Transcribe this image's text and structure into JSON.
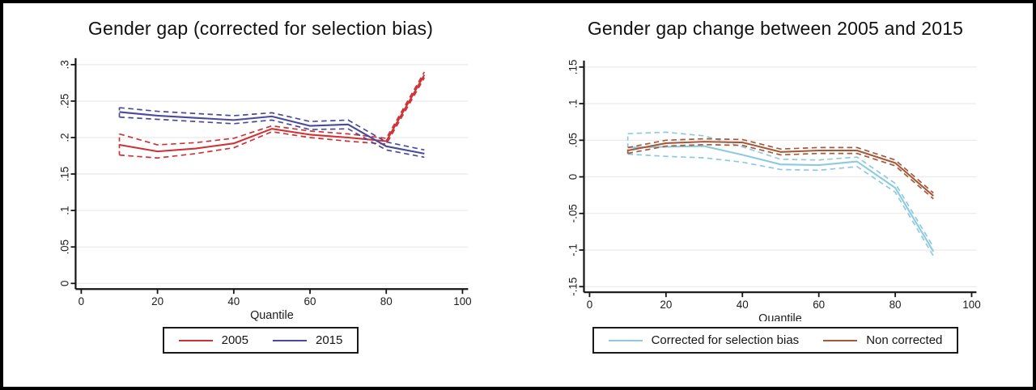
{
  "figure": {
    "background": "#ffffff",
    "border_color": "#000000",
    "gridline_color": "#ebebeb",
    "axis_color": "#141414"
  },
  "chart_data": [
    {
      "type": "line",
      "title": "Gender gap (corrected for selection bias)",
      "xlabel": "Quantile",
      "ylabel": "",
      "xlim": [
        0,
        100
      ],
      "ylim": [
        0,
        0.3
      ],
      "xtick_values": [
        0,
        20,
        40,
        60,
        80,
        100
      ],
      "xtick_labels": [
        "0",
        "20",
        "40",
        "60",
        "80",
        "100"
      ],
      "ytick_values": [
        0,
        0.05,
        0.1,
        0.15,
        0.2,
        0.25,
        0.3
      ],
      "ytick_labels": [
        "0",
        ".05",
        ".1",
        ".15",
        ".2",
        ".25",
        ".3"
      ],
      "grid": true,
      "legend_position": "bottom",
      "x": [
        10,
        20,
        30,
        40,
        50,
        60,
        70,
        80,
        90
      ],
      "series": [
        {
          "name": "2005",
          "color": "#cc3236",
          "center": [
            0.19,
            0.181,
            0.185,
            0.192,
            0.212,
            0.204,
            0.2,
            0.195,
            0.286
          ],
          "upper": [
            0.205,
            0.19,
            0.193,
            0.199,
            0.216,
            0.209,
            0.205,
            0.199,
            0.29
          ],
          "lower": [
            0.176,
            0.172,
            0.178,
            0.186,
            0.208,
            0.2,
            0.195,
            0.191,
            0.282
          ]
        },
        {
          "name": "2015",
          "color": "#4a4a9d",
          "center": [
            0.235,
            0.23,
            0.227,
            0.224,
            0.229,
            0.216,
            0.218,
            0.188,
            0.178
          ],
          "upper": [
            0.241,
            0.236,
            0.233,
            0.23,
            0.234,
            0.222,
            0.224,
            0.194,
            0.183
          ],
          "lower": [
            0.228,
            0.225,
            0.222,
            0.219,
            0.224,
            0.211,
            0.212,
            0.183,
            0.173
          ]
        }
      ]
    },
    {
      "type": "line",
      "title": "Gender gap change between 2005 and 2015",
      "xlabel": "Quantile",
      "ylabel": "",
      "xlim": [
        0,
        100
      ],
      "ylim": [
        -0.15,
        0.15
      ],
      "xtick_values": [
        0,
        20,
        40,
        60,
        80,
        100
      ],
      "xtick_labels": [
        "0",
        "20",
        "40",
        "60",
        "80",
        "100"
      ],
      "ytick_values": [
        -0.15,
        -0.1,
        -0.05,
        0,
        0.05,
        0.1,
        0.15
      ],
      "ytick_labels": [
        "-.15",
        "-.1",
        "-.05",
        "0",
        ".05",
        ".1",
        ".15"
      ],
      "grid": true,
      "legend_position": "bottom",
      "x": [
        10,
        20,
        30,
        40,
        50,
        60,
        70,
        80,
        90
      ],
      "series": [
        {
          "name": "Corrected for selection bias",
          "color": "#8ecadf",
          "center": [
            0.04,
            0.041,
            0.042,
            0.03,
            0.017,
            0.016,
            0.021,
            -0.015,
            -0.102
          ],
          "upper": [
            0.059,
            0.061,
            0.056,
            0.041,
            0.024,
            0.023,
            0.027,
            -0.009,
            -0.096
          ],
          "lower": [
            0.031,
            0.028,
            0.026,
            0.02,
            0.01,
            0.009,
            0.014,
            -0.021,
            -0.108
          ]
        },
        {
          "name": "Non corrected",
          "color": "#a5593a",
          "center": [
            0.036,
            0.046,
            0.048,
            0.047,
            0.034,
            0.036,
            0.036,
            0.019,
            -0.026
          ],
          "upper": [
            0.04,
            0.05,
            0.052,
            0.051,
            0.038,
            0.04,
            0.04,
            0.023,
            -0.022
          ],
          "lower": [
            0.032,
            0.042,
            0.044,
            0.043,
            0.03,
            0.032,
            0.032,
            0.015,
            -0.03
          ]
        }
      ]
    }
  ]
}
